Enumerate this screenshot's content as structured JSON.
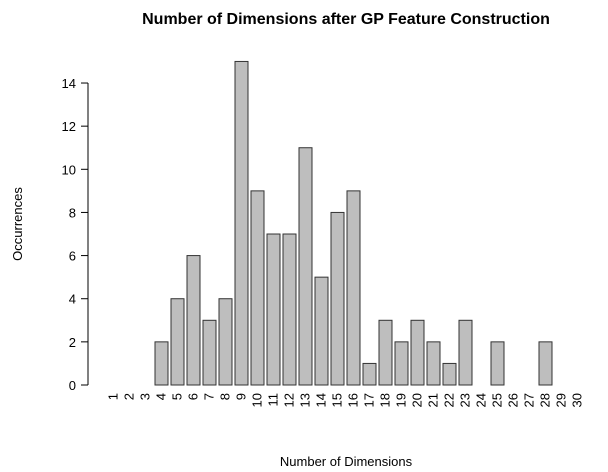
{
  "chart_data": {
    "type": "bar",
    "title": "Number of Dimensions after GP Feature Construction",
    "x_label": "Number of Dimensions",
    "y_label": "Occurrences",
    "categories": [
      "1",
      "2",
      "3",
      "4",
      "5",
      "6",
      "7",
      "8",
      "9",
      "10",
      "11",
      "12",
      "13",
      "14",
      "15",
      "16",
      "17",
      "18",
      "19",
      "20",
      "21",
      "22",
      "23",
      "24",
      "25",
      "26",
      "27",
      "28",
      "29",
      "30"
    ],
    "values": [
      0,
      0,
      0,
      2,
      4,
      6,
      3,
      4,
      15,
      9,
      7,
      7,
      11,
      5,
      8,
      9,
      1,
      3,
      2,
      3,
      2,
      1,
      3,
      0,
      2,
      0,
      0,
      2,
      0,
      0
    ],
    "color": "#bebebe",
    "ylim": [
      0,
      15
    ],
    "yticks": [
      0,
      2,
      4,
      6,
      8,
      10,
      12,
      14
    ]
  }
}
